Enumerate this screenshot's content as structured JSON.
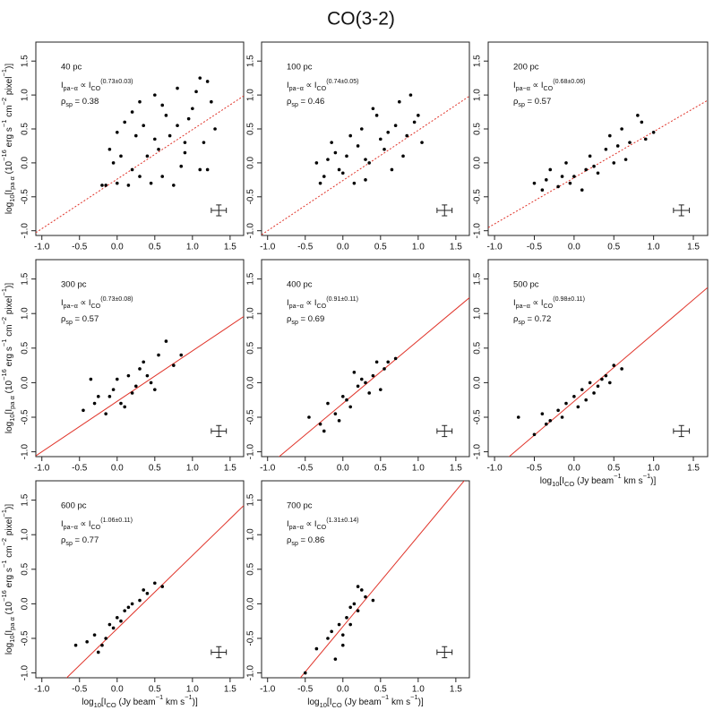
{
  "title": "CO(3-2)",
  "chart_data": [
    {
      "type": "scatter",
      "label": "40 pc",
      "relation": {
        "lhs": "I",
        "lhs_sub": "pa−α",
        "op": " ∝ ",
        "rhs": "I",
        "rhs_sub": "CO",
        "exponent": "(0.73±0.03)"
      },
      "rho": {
        "symbol": "ρ",
        "sub": "sp",
        "text": " = 0.38"
      },
      "ylabel": [
        "log",
        "10",
        "[I",
        "pa α",
        " (10",
        "−16",
        " erg s",
        "−1",
        " cm",
        "−2",
        " pixel",
        "−1",
        ")]"
      ],
      "x": [
        -0.2,
        -0.1,
        0.0,
        0.1,
        0.2,
        0.3,
        0.4,
        0.5,
        0.6,
        0.7,
        0.8,
        0.9,
        1.0,
        1.1,
        1.2,
        1.3,
        -0.15,
        0.05,
        0.25,
        0.45,
        0.65,
        0.85,
        1.05,
        1.25,
        -0.05,
        0.15,
        0.35,
        0.55,
        0.75,
        0.95,
        1.15,
        0.0,
        0.3,
        0.6,
        0.9,
        1.2,
        0.2,
        0.5,
        0.8,
        1.1
      ],
      "values": [
        -0.33,
        0.2,
        -0.3,
        0.6,
        -0.1,
        0.9,
        0.1,
        1.0,
        -0.2,
        0.4,
        1.1,
        0.3,
        0.8,
        -0.1,
        1.2,
        0.5,
        -0.33,
        0.1,
        0.4,
        -0.3,
        0.7,
        -0.05,
        1.05,
        0.9,
        0.0,
        -0.33,
        0.55,
        0.2,
        -0.33,
        0.65,
        0.3,
        0.45,
        -0.2,
        0.85,
        0.15,
        -0.1,
        0.75,
        0.35,
        0.55,
        1.25
      ],
      "fit": {
        "slope": 0.73,
        "intercept": -0.24,
        "style": "dotted",
        "color": "#e0342a"
      },
      "error_cross": {
        "x": 1.35,
        "y": -0.7,
        "xerr": 0.1,
        "yerr": 0.08
      },
      "color": "#000000",
      "xlim": [
        -1.08,
        1.68
      ],
      "ylim": [
        -1.07,
        1.78
      ],
      "xticks": [
        {
          "value": -1,
          "label": "-1.0"
        },
        {
          "value": -0.5,
          "label": "-0.5"
        },
        {
          "value": 0,
          "label": "0.0"
        },
        {
          "value": 0.5,
          "label": "0.5"
        },
        {
          "value": 1,
          "label": "1.0"
        },
        {
          "value": 1.5,
          "label": "1.5"
        }
      ],
      "yticks": [
        {
          "value": -1,
          "label": "-1.0"
        },
        {
          "value": -0.5,
          "label": "-0.5"
        },
        {
          "value": 0,
          "label": "0.0"
        },
        {
          "value": 0.5,
          "label": "0.5"
        },
        {
          "value": 1,
          "label": "1.0"
        },
        {
          "value": 1.5,
          "label": "1.5"
        }
      ]
    },
    {
      "type": "scatter",
      "label": "100 pc",
      "relation": {
        "lhs": "I",
        "lhs_sub": "pa−α",
        "op": " ∝ ",
        "rhs": "I",
        "rhs_sub": "CO",
        "exponent": "(0.74±0.05)"
      },
      "rho": {
        "symbol": "ρ",
        "sub": "sp",
        "text": " = 0.46"
      },
      "x": [
        -0.35,
        -0.25,
        -0.15,
        -0.05,
        0.05,
        0.15,
        0.25,
        0.35,
        0.45,
        0.55,
        0.65,
        0.75,
        0.85,
        0.95,
        1.05,
        -0.3,
        -0.1,
        0.1,
        0.3,
        0.5,
        0.7,
        0.9,
        -0.2,
        0.0,
        0.2,
        0.4,
        0.6,
        0.8,
        1.0,
        0.3
      ],
      "values": [
        0.0,
        -0.2,
        0.3,
        -0.1,
        0.1,
        -0.3,
        0.5,
        0.0,
        0.7,
        0.2,
        -0.1,
        0.9,
        0.4,
        0.6,
        0.3,
        -0.3,
        0.15,
        0.4,
        -0.25,
        0.35,
        0.55,
        1.0,
        0.05,
        -0.15,
        0.25,
        0.8,
        0.45,
        0.1,
        0.7,
        0.05
      ],
      "fit": {
        "slope": 0.74,
        "intercept": -0.26,
        "style": "dotted",
        "color": "#e0342a"
      },
      "error_cross": {
        "x": 1.35,
        "y": -0.7,
        "xerr": 0.1,
        "yerr": 0.08
      },
      "color": "#000000",
      "xlim": [
        -1.08,
        1.68
      ],
      "ylim": [
        -1.07,
        1.78
      ],
      "xticks": [
        {
          "value": -1,
          "label": "-1.0"
        },
        {
          "value": -0.5,
          "label": "-0.5"
        },
        {
          "value": 0,
          "label": "0.0"
        },
        {
          "value": 0.5,
          "label": "0.5"
        },
        {
          "value": 1,
          "label": "1.0"
        },
        {
          "value": 1.5,
          "label": "1.5"
        }
      ],
      "yticks": [
        {
          "value": -1,
          "label": "-1.0"
        },
        {
          "value": -0.5,
          "label": "-0.5"
        },
        {
          "value": 0,
          "label": "0.0"
        },
        {
          "value": 0.5,
          "label": "0.5"
        },
        {
          "value": 1,
          "label": "1.0"
        },
        {
          "value": 1.5,
          "label": "1.5"
        }
      ]
    },
    {
      "type": "scatter",
      "label": "200 pc",
      "relation": {
        "lhs": "I",
        "lhs_sub": "pa−α",
        "op": " ∝ ",
        "rhs": "I",
        "rhs_sub": "CO",
        "exponent": "(0.68±0.06)"
      },
      "rho": {
        "symbol": "ρ",
        "sub": "sp",
        "text": " = 0.57"
      },
      "x": [
        -0.5,
        -0.4,
        -0.3,
        -0.2,
        -0.1,
        0.0,
        0.1,
        0.2,
        0.3,
        0.4,
        0.5,
        0.6,
        0.7,
        0.8,
        0.9,
        1.0,
        -0.35,
        -0.05,
        0.25,
        0.55,
        0.85,
        0.15,
        0.45,
        -0.15,
        0.65
      ],
      "values": [
        -0.3,
        -0.4,
        -0.1,
        -0.35,
        0.0,
        -0.2,
        -0.4,
        0.1,
        -0.15,
        0.2,
        0.0,
        0.5,
        0.3,
        0.7,
        0.35,
        0.45,
        -0.25,
        -0.3,
        -0.05,
        0.25,
        0.6,
        -0.1,
        0.4,
        -0.2,
        0.05
      ],
      "fit": {
        "slope": 0.68,
        "intercept": -0.22,
        "style": "dotted",
        "color": "#e0342a"
      },
      "error_cross": {
        "x": 1.35,
        "y": -0.7,
        "xerr": 0.1,
        "yerr": 0.08
      },
      "color": "#000000",
      "xlim": [
        -1.08,
        1.68
      ],
      "ylim": [
        -1.07,
        1.78
      ],
      "xticks": [
        {
          "value": -1,
          "label": "-1.0"
        },
        {
          "value": -0.5,
          "label": "-0.5"
        },
        {
          "value": 0,
          "label": "0.0"
        },
        {
          "value": 0.5,
          "label": "0.5"
        },
        {
          "value": 1,
          "label": "1.0"
        },
        {
          "value": 1.5,
          "label": "1.5"
        }
      ],
      "yticks": [
        {
          "value": -1,
          "label": "-1.0"
        },
        {
          "value": -0.5,
          "label": "-0.5"
        },
        {
          "value": 0,
          "label": "0.0"
        },
        {
          "value": 0.5,
          "label": "0.5"
        },
        {
          "value": 1,
          "label": "1.0"
        },
        {
          "value": 1.5,
          "label": "1.5"
        }
      ]
    },
    {
      "type": "scatter",
      "label": "300 pc",
      "relation": {
        "lhs": "I",
        "lhs_sub": "pa−α",
        "op": " ∝ ",
        "rhs": "I",
        "rhs_sub": "CO",
        "exponent": "(0.73±0.08)"
      },
      "rho": {
        "symbol": "ρ",
        "sub": "sp",
        "text": " = 0.57"
      },
      "ylabel": [
        "log",
        "10",
        "[I",
        "pa α",
        " (10",
        "−16",
        " erg s",
        "−1",
        " cm",
        "−2",
        " pixel",
        "−1",
        ")]"
      ],
      "x": [
        -0.45,
        -0.35,
        -0.25,
        -0.15,
        -0.05,
        0.05,
        0.15,
        0.25,
        0.35,
        0.45,
        0.55,
        0.65,
        0.75,
        0.85,
        -0.3,
        -0.1,
        0.1,
        0.3,
        0.5,
        0.0,
        0.2,
        0.4
      ],
      "values": [
        -0.4,
        0.05,
        -0.2,
        -0.45,
        -0.1,
        -0.3,
        0.1,
        -0.05,
        0.3,
        0.0,
        0.4,
        0.6,
        0.25,
        0.4,
        -0.3,
        -0.2,
        -0.35,
        0.2,
        -0.1,
        0.05,
        -0.15,
        0.1
      ],
      "fit": {
        "slope": 0.73,
        "intercept": -0.27,
        "style": "solid",
        "color": "#e0342a"
      },
      "error_cross": {
        "x": 1.35,
        "y": -0.7,
        "xerr": 0.1,
        "yerr": 0.08
      },
      "color": "#000000",
      "xlim": [
        -1.08,
        1.68
      ],
      "ylim": [
        -1.07,
        1.78
      ],
      "xticks": [
        {
          "value": -1,
          "label": "-1.0"
        },
        {
          "value": -0.5,
          "label": "-0.5"
        },
        {
          "value": 0,
          "label": "0.0"
        },
        {
          "value": 0.5,
          "label": "0.5"
        },
        {
          "value": 1,
          "label": "1.0"
        },
        {
          "value": 1.5,
          "label": "1.5"
        }
      ],
      "yticks": [
        {
          "value": -1,
          "label": "-1.0"
        },
        {
          "value": -0.5,
          "label": "-0.5"
        },
        {
          "value": 0,
          "label": "0.0"
        },
        {
          "value": 0.5,
          "label": "0.5"
        },
        {
          "value": 1,
          "label": "1.0"
        },
        {
          "value": 1.5,
          "label": "1.5"
        }
      ]
    },
    {
      "type": "scatter",
      "label": "400 pc",
      "relation": {
        "lhs": "I",
        "lhs_sub": "pa−α",
        "op": " ∝ ",
        "rhs": "I",
        "rhs_sub": "CO",
        "exponent": "(0.91±0.11)"
      },
      "rho": {
        "symbol": "ρ",
        "sub": "sp",
        "text": " = 0.69"
      },
      "x": [
        -0.45,
        -0.3,
        -0.2,
        -0.1,
        0.0,
        0.1,
        0.2,
        0.3,
        0.4,
        0.5,
        0.6,
        0.7,
        -0.25,
        -0.05,
        0.15,
        0.35,
        0.55,
        0.05,
        0.25,
        0.45
      ],
      "values": [
        -0.5,
        -0.6,
        -0.3,
        -0.45,
        -0.2,
        -0.35,
        -0.05,
        0.0,
        0.1,
        -0.1,
        0.3,
        0.35,
        -0.7,
        -0.55,
        0.15,
        -0.15,
        0.2,
        -0.25,
        0.05,
        0.3
      ],
      "fit": {
        "slope": 0.91,
        "intercept": -0.3,
        "style": "solid",
        "color": "#e0342a"
      },
      "error_cross": {
        "x": 1.35,
        "y": -0.7,
        "xerr": 0.1,
        "yerr": 0.08
      },
      "color": "#000000",
      "xlim": [
        -1.08,
        1.68
      ],
      "ylim": [
        -1.07,
        1.78
      ],
      "xticks": [
        {
          "value": -1,
          "label": "-1.0"
        },
        {
          "value": -0.5,
          "label": "-0.5"
        },
        {
          "value": 0,
          "label": "0.0"
        },
        {
          "value": 0.5,
          "label": "0.5"
        },
        {
          "value": 1,
          "label": "1.0"
        },
        {
          "value": 1.5,
          "label": "1.5"
        }
      ],
      "yticks": [
        {
          "value": -1,
          "label": "-1.0"
        },
        {
          "value": -0.5,
          "label": "-0.5"
        },
        {
          "value": 0,
          "label": "0.0"
        },
        {
          "value": 0.5,
          "label": "0.5"
        },
        {
          "value": 1,
          "label": "1.0"
        },
        {
          "value": 1.5,
          "label": "1.5"
        }
      ]
    },
    {
      "type": "scatter",
      "label": "500 pc",
      "relation": {
        "lhs": "I",
        "lhs_sub": "pa−α",
        "op": " ∝ ",
        "rhs": "I",
        "rhs_sub": "CO",
        "exponent": "(0.98±0.11)"
      },
      "rho": {
        "symbol": "ρ",
        "sub": "sp",
        "text": " = 0.72"
      },
      "xlabel": [
        "log",
        "10",
        "[I",
        "CO",
        " (Jy beam",
        "−1",
        " km s",
        "−1",
        ")]"
      ],
      "x": [
        -0.7,
        -0.5,
        -0.4,
        -0.3,
        -0.2,
        -0.1,
        0.0,
        0.1,
        0.2,
        0.3,
        0.4,
        0.5,
        0.6,
        -0.35,
        -0.15,
        0.05,
        0.25,
        0.45,
        0.15,
        0.35
      ],
      "values": [
        -0.5,
        -0.75,
        -0.45,
        -0.55,
        -0.4,
        -0.3,
        -0.2,
        -0.1,
        0.0,
        -0.05,
        0.1,
        0.25,
        0.2,
        -0.6,
        -0.5,
        -0.35,
        -0.15,
        0.0,
        -0.25,
        0.05
      ],
      "fit": {
        "slope": 0.98,
        "intercept": -0.27,
        "style": "solid",
        "color": "#e0342a"
      },
      "error_cross": {
        "x": 1.35,
        "y": -0.7,
        "xerr": 0.1,
        "yerr": 0.08
      },
      "color": "#000000",
      "xlim": [
        -1.08,
        1.68
      ],
      "ylim": [
        -1.07,
        1.78
      ],
      "xticks": [
        {
          "value": -1,
          "label": "-1.0"
        },
        {
          "value": -0.5,
          "label": "-0.5"
        },
        {
          "value": 0,
          "label": "0.0"
        },
        {
          "value": 0.5,
          "label": "0.5"
        },
        {
          "value": 1,
          "label": "1.0"
        },
        {
          "value": 1.5,
          "label": "1.5"
        }
      ],
      "yticks": [
        {
          "value": -1,
          "label": "-1.0"
        },
        {
          "value": -0.5,
          "label": "-0.5"
        },
        {
          "value": 0,
          "label": "0.0"
        },
        {
          "value": 0.5,
          "label": "0.5"
        },
        {
          "value": 1,
          "label": "1.0"
        },
        {
          "value": 1.5,
          "label": "1.5"
        }
      ]
    },
    {
      "type": "scatter",
      "label": "600 pc",
      "relation": {
        "lhs": "I",
        "lhs_sub": "pa−α",
        "op": " ∝ ",
        "rhs": "I",
        "rhs_sub": "CO",
        "exponent": "(1.06±0.11)"
      },
      "rho": {
        "symbol": "ρ",
        "sub": "sp",
        "text": " = 0.77"
      },
      "ylabel": [
        "log",
        "10",
        "[I",
        "pa α",
        " (10",
        "−16",
        " erg s",
        "−1",
        " cm",
        "−2",
        " pixel",
        "−1",
        ")]"
      ],
      "xlabel": [
        "log",
        "10",
        "[I",
        "CO",
        " (Jy beam",
        "−1",
        " km s",
        "−1",
        ")]"
      ],
      "x": [
        -0.55,
        -0.4,
        -0.3,
        -0.2,
        -0.1,
        0.0,
        0.1,
        0.2,
        0.3,
        0.4,
        0.5,
        0.6,
        -0.25,
        -0.05,
        0.15,
        0.35,
        -0.15,
        0.05
      ],
      "values": [
        -0.6,
        -0.55,
        -0.45,
        -0.6,
        -0.3,
        -0.2,
        -0.1,
        0.0,
        0.05,
        0.15,
        0.3,
        0.25,
        -0.7,
        -0.35,
        -0.05,
        0.2,
        -0.5,
        -0.25
      ],
      "fit": {
        "slope": 1.06,
        "intercept": -0.36,
        "style": "solid",
        "color": "#e0342a"
      },
      "error_cross": {
        "x": 1.35,
        "y": -0.7,
        "xerr": 0.1,
        "yerr": 0.08
      },
      "color": "#000000",
      "xlim": [
        -1.08,
        1.68
      ],
      "ylim": [
        -1.07,
        1.78
      ],
      "xticks": [
        {
          "value": -1,
          "label": "-1.0"
        },
        {
          "value": -0.5,
          "label": "-0.5"
        },
        {
          "value": 0,
          "label": "0.0"
        },
        {
          "value": 0.5,
          "label": "0.5"
        },
        {
          "value": 1,
          "label": "1.0"
        },
        {
          "value": 1.5,
          "label": "1.5"
        }
      ],
      "yticks": [
        {
          "value": -1,
          "label": "-1.0"
        },
        {
          "value": -0.5,
          "label": "-0.5"
        },
        {
          "value": 0,
          "label": "0.0"
        },
        {
          "value": 0.5,
          "label": "0.5"
        },
        {
          "value": 1,
          "label": "1.0"
        },
        {
          "value": 1.5,
          "label": "1.5"
        }
      ]
    },
    {
      "type": "scatter",
      "label": "700 pc",
      "relation": {
        "lhs": "I",
        "lhs_sub": "pa−α",
        "op": " ∝ ",
        "rhs": "I",
        "rhs_sub": "CO",
        "exponent": "(1.31±0.14)"
      },
      "rho": {
        "symbol": "ρ",
        "sub": "sp",
        "text": " = 0.86"
      },
      "xlabel": [
        "log",
        "10",
        "[I",
        "CO",
        " (Jy beam",
        "−1",
        " km s",
        "−1",
        ")]"
      ],
      "x": [
        -0.5,
        -0.35,
        -0.2,
        -0.1,
        -0.05,
        0.0,
        0.05,
        0.1,
        0.15,
        0.2,
        0.25,
        0.3,
        0.4,
        -0.15,
        0.0,
        0.1,
        0.2
      ],
      "values": [
        -1.0,
        -0.65,
        -0.5,
        -0.8,
        -0.3,
        -0.45,
        -0.2,
        -0.05,
        0.0,
        -0.1,
        0.2,
        0.1,
        0.05,
        -0.4,
        -0.6,
        -0.3,
        0.25
      ],
      "fit": {
        "slope": 1.31,
        "intercept": -0.33,
        "style": "solid",
        "color": "#e0342a"
      },
      "error_cross": {
        "x": 1.35,
        "y": -0.7,
        "xerr": 0.1,
        "yerr": 0.08
      },
      "color": "#000000",
      "xlim": [
        -1.08,
        1.68
      ],
      "ylim": [
        -1.07,
        1.78
      ],
      "xticks": [
        {
          "value": -1,
          "label": "-1.0"
        },
        {
          "value": -0.5,
          "label": "-0.5"
        },
        {
          "value": 0,
          "label": "0.0"
        },
        {
          "value": 0.5,
          "label": "0.5"
        },
        {
          "value": 1,
          "label": "1.0"
        },
        {
          "value": 1.5,
          "label": "1.5"
        }
      ],
      "yticks": [
        {
          "value": -1,
          "label": "-1.0"
        },
        {
          "value": -0.5,
          "label": "-0.5"
        },
        {
          "value": 0,
          "label": "0.0"
        },
        {
          "value": 0.5,
          "label": "0.5"
        },
        {
          "value": 1,
          "label": "1.0"
        },
        {
          "value": 1.5,
          "label": "1.5"
        }
      ]
    }
  ]
}
